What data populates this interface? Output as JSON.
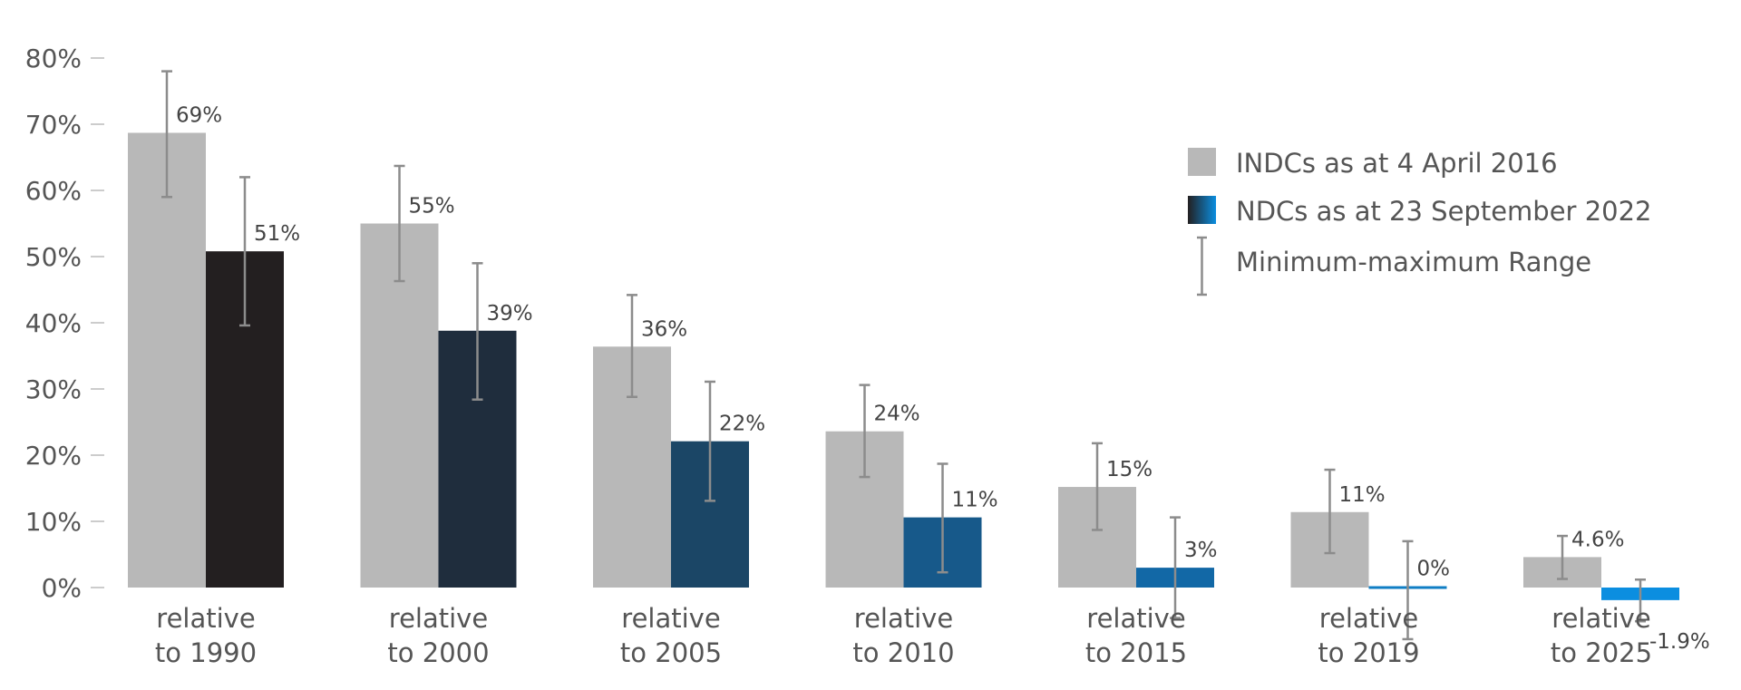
{
  "chart_data": {
    "type": "bar",
    "categories": [
      [
        "relative",
        "to 1990"
      ],
      [
        "relative",
        "to 2000"
      ],
      [
        "relative",
        "to 2005"
      ],
      [
        "relative",
        "to 2010"
      ],
      [
        "relative",
        "to 2015"
      ],
      [
        "relative",
        "to 2019"
      ],
      [
        "relative",
        "to 2025"
      ]
    ],
    "ylim": [
      0,
      80
    ],
    "yticks": [
      0,
      10,
      20,
      30,
      40,
      50,
      60,
      70,
      80
    ],
    "ytick_labels": [
      "0%",
      "10%",
      "20%",
      "30%",
      "40%",
      "50%",
      "60%",
      "70%",
      "80%"
    ],
    "grid": false,
    "legend_position": "top-right",
    "series": [
      {
        "name": "INDCs as at 4 April 2016",
        "values": [
          68.7,
          55,
          36.4,
          23.6,
          15.2,
          11.4,
          4.6
        ],
        "labels": [
          "69%",
          "55%",
          "36%",
          "24%",
          "15%",
          "11%",
          "4.6%"
        ],
        "min": [
          59,
          46.3,
          28.8,
          16.7,
          8.7,
          5.2,
          1.3
        ],
        "max": [
          78,
          63.7,
          44.2,
          30.6,
          21.8,
          17.8,
          7.8
        ],
        "colors": [
          "#b8b8b8",
          "#b8b8b8",
          "#b8b8b8",
          "#b8b8b8",
          "#b8b8b8",
          "#b8b8b8",
          "#b8b8b8"
        ]
      },
      {
        "name": "NDCs as at 23 September 2022",
        "values": [
          50.8,
          38.8,
          22.1,
          10.6,
          3,
          0,
          -1.9
        ],
        "labels": [
          "51%",
          "39%",
          "22%",
          "11%",
          "3%",
          "0%",
          "-1.9%"
        ],
        "min": [
          39.6,
          28.4,
          13.1,
          2.3,
          -4.6,
          -7.8,
          -5.1
        ],
        "max": [
          62,
          49,
          31.1,
          18.7,
          10.6,
          7,
          1.2
        ],
        "colors": [
          "#231f20",
          "#1f2d3d",
          "#1b4666",
          "#17598a",
          "#1268a6",
          "#0f7ec4",
          "#0b8ee0"
        ]
      }
    ],
    "legend": {
      "range_label": "Minimum-maximum Range"
    }
  }
}
